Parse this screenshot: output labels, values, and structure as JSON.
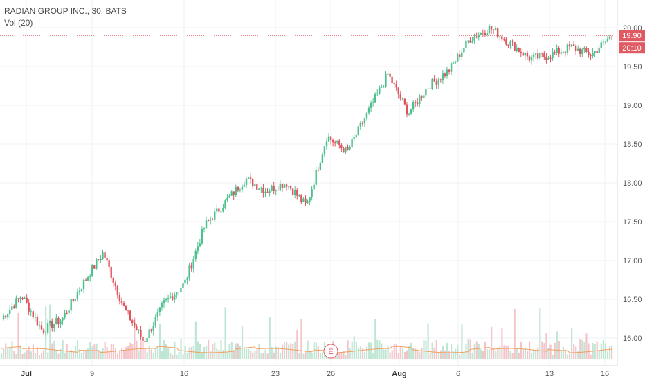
{
  "header": {
    "symbol_line": "RADIAN GROUP INC., 30, BATS",
    "volume_label": "Vol (20)"
  },
  "price_badges": {
    "last_price": "19.90",
    "countdown": "20:10"
  },
  "event_marker": "E",
  "colors": {
    "up": "#4cc08e",
    "down": "#e0535d",
    "volume_up": "#bfe5d3",
    "volume_down": "#f4c4c8",
    "volume_ma": "#f0a060",
    "grid": "#eef0f3",
    "badge": "#e05a63"
  },
  "chart_data": {
    "type": "candlestick",
    "title": "RADIAN GROUP INC., 30, BATS",
    "y_axis": {
      "ticks": [
        "20.00",
        "19.50",
        "19.00",
        "18.50",
        "18.00",
        "17.50",
        "17.00",
        "16.50",
        "16.00"
      ],
      "range": [
        15.75,
        20.15
      ]
    },
    "x_axis": {
      "ticks": [
        "Jul",
        "9",
        "16",
        "23",
        "26",
        "Aug",
        "6",
        "13",
        "16"
      ]
    },
    "last_price": 19.9,
    "approx_path": [
      {
        "label": "Jul start",
        "price": 16.25
      },
      {
        "label": "Jul 3",
        "price": 16.55
      },
      {
        "label": "Jul 5",
        "price": 16.1
      },
      {
        "label": "Jul 6",
        "price": 16.25
      },
      {
        "label": "Jul 9",
        "price": 16.7
      },
      {
        "label": "Jul 10",
        "price": 17.1
      },
      {
        "label": "Jul 11",
        "price": 16.4
      },
      {
        "label": "Jul 13",
        "price": 15.95
      },
      {
        "label": "Jul 16",
        "price": 16.45
      },
      {
        "label": "Jul 17",
        "price": 16.7
      },
      {
        "label": "Jul 18",
        "price": 17.45
      },
      {
        "label": "Jul 19",
        "price": 17.75
      },
      {
        "label": "Jul 20",
        "price": 18.05
      },
      {
        "label": "Jul 23",
        "price": 17.9
      },
      {
        "label": "Jul 24",
        "price": 18.0
      },
      {
        "label": "Jul 25",
        "price": 17.7
      },
      {
        "label": "Jul 26",
        "price": 18.6
      },
      {
        "label": "Jul 27",
        "price": 18.4
      },
      {
        "label": "Jul 30",
        "price": 18.9
      },
      {
        "label": "Jul 31",
        "price": 19.4
      },
      {
        "label": "Aug 1",
        "price": 18.9
      },
      {
        "label": "Aug 2",
        "price": 19.25
      },
      {
        "label": "Aug 3",
        "price": 19.45
      },
      {
        "label": "Aug 6",
        "price": 19.85
      },
      {
        "label": "Aug 8",
        "price": 20.0
      },
      {
        "label": "Aug 9",
        "price": 19.8
      },
      {
        "label": "Aug 10",
        "price": 19.6
      },
      {
        "label": "Aug 13",
        "price": 19.65
      },
      {
        "label": "Aug 14",
        "price": 19.75
      },
      {
        "label": "Aug 15",
        "price": 19.65
      },
      {
        "label": "Aug 16",
        "price": 19.9
      }
    ]
  }
}
